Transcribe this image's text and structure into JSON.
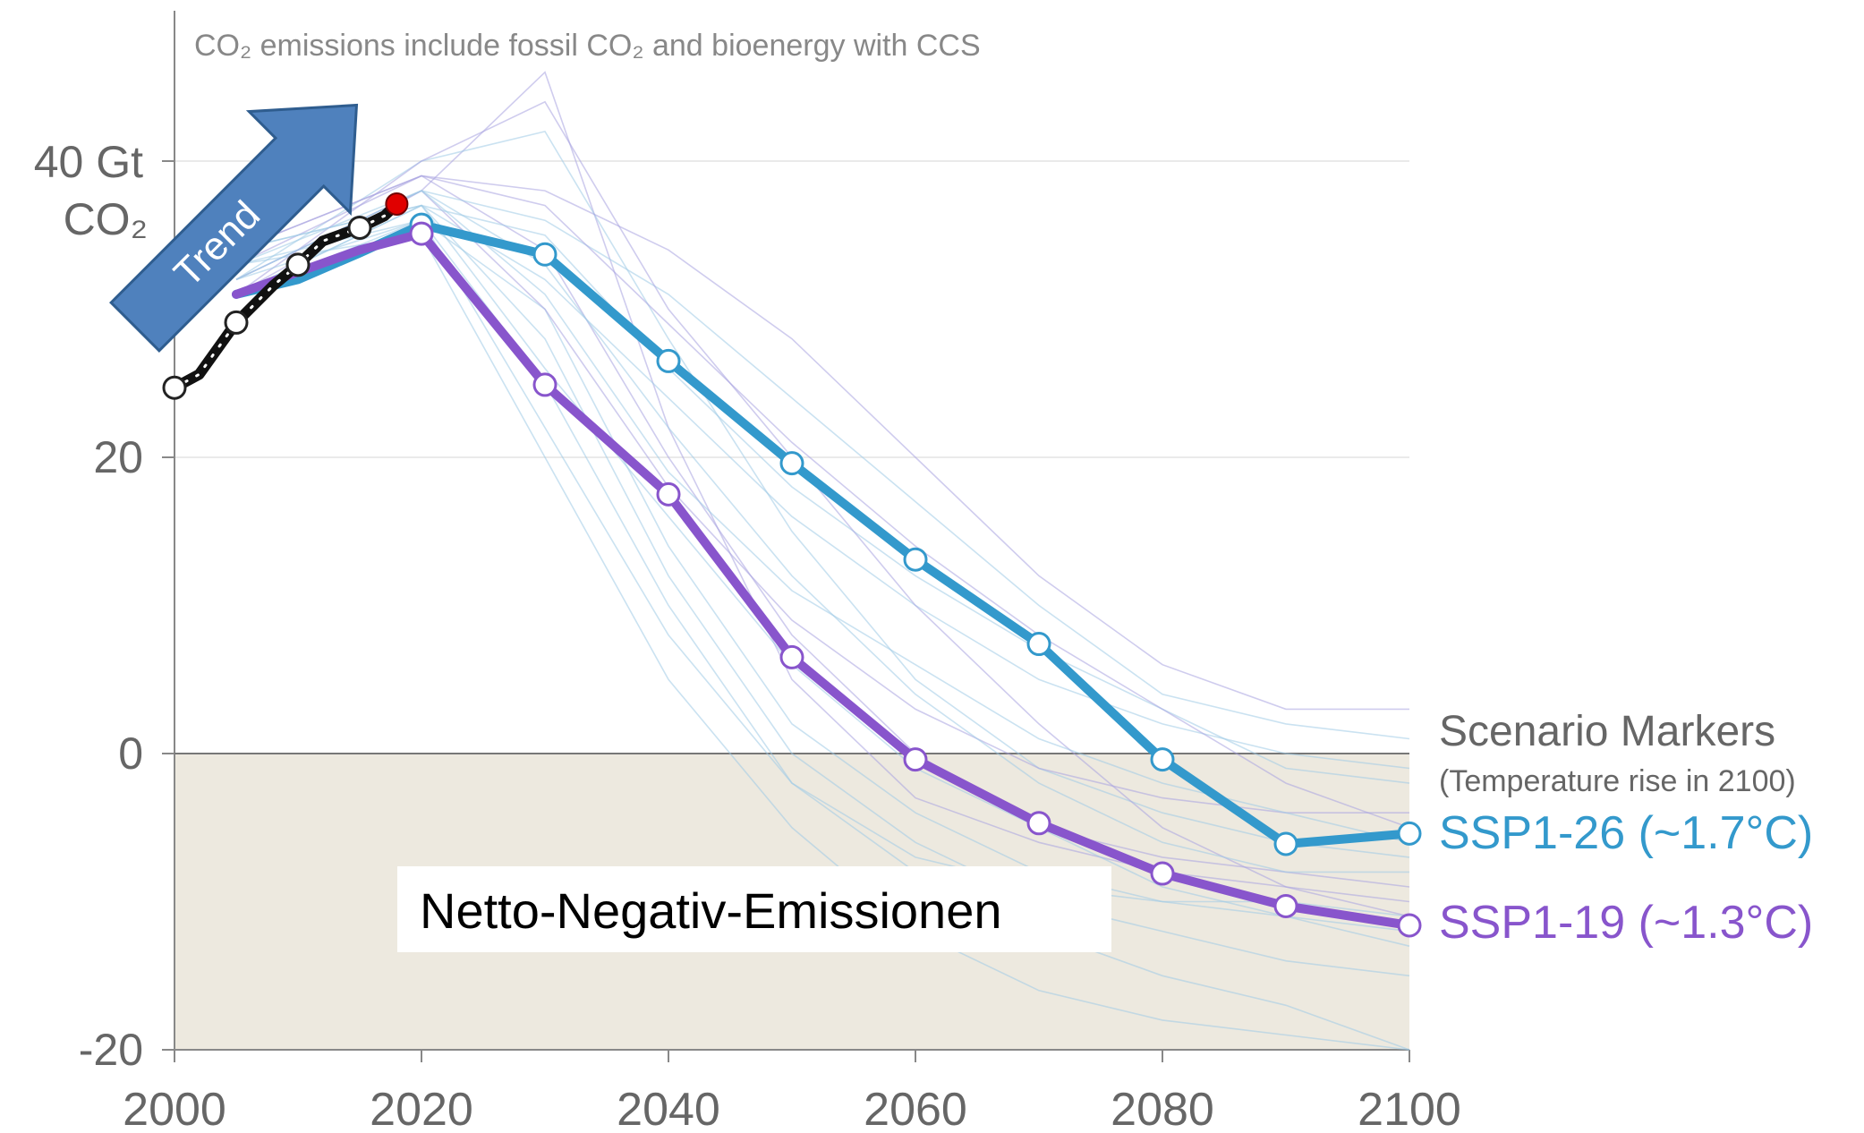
{
  "chart_data": {
    "type": "line",
    "note": "CO₂ emissions include fossil CO₂ and bioenergy with CCS",
    "y_unit_label": [
      "40 Gt",
      "CO₂"
    ],
    "x_ticks": [
      "2000",
      "2020",
      "2040",
      "2060",
      "2080",
      "2100"
    ],
    "y_ticks": [
      "20",
      "0",
      "-20"
    ],
    "xlim": [
      2000,
      2100
    ],
    "ylim": [
      -20,
      40
    ],
    "grid": true,
    "negative_region_label": "Netto-Negativ-Emissionen",
    "trend_label": "Trend",
    "legend_title": "Scenario Markers",
    "legend_subtitle": "(Temperature rise in 2100)",
    "series": [
      {
        "name": "SSP1-26 (~1.7°C)",
        "color": "#3399cc",
        "x": [
          2005,
          2010,
          2015,
          2020,
          2030,
          2040,
          2050,
          2060,
          2070,
          2080,
          2090,
          2100
        ],
        "y": [
          31.0,
          32.0,
          33.8,
          35.7,
          33.7,
          26.5,
          19.6,
          13.1,
          7.4,
          -0.4,
          -6.1,
          -5.4
        ]
      },
      {
        "name": "SSP1-19 (~1.3°C)",
        "color": "#8855cc",
        "x": [
          2005,
          2010,
          2015,
          2020,
          2030,
          2040,
          2050,
          2060,
          2070,
          2080,
          2090,
          2100
        ],
        "y": [
          31.0,
          32.5,
          34.0,
          35.1,
          24.9,
          17.5,
          6.5,
          -0.4,
          -4.7,
          -8.1,
          -10.3,
          -11.6
        ]
      }
    ],
    "historical": {
      "x": [
        2000,
        2002,
        2005,
        2008,
        2010,
        2012,
        2015,
        2017,
        2018
      ],
      "y": [
        24.7,
        25.6,
        29.1,
        31.6,
        33.0,
        34.6,
        35.5,
        36.3,
        37.1
      ]
    },
    "background_scenarios": {
      "x": [
        2020,
        2030,
        2040,
        2050,
        2060,
        2070,
        2080,
        2090,
        2100
      ],
      "paths": [
        [
          38,
          46,
          22,
          5,
          -3,
          -6,
          -8,
          -9,
          -10
        ],
        [
          40,
          42,
          28,
          15,
          5,
          -1,
          -4,
          -6,
          -7
        ],
        [
          36,
          30,
          14,
          2,
          -4,
          -8,
          -10,
          -11,
          -12
        ],
        [
          39,
          34,
          20,
          8,
          0,
          -5,
          -7,
          -8,
          -9
        ],
        [
          37,
          28,
          12,
          0,
          -6,
          -10,
          -12,
          -14,
          -15
        ],
        [
          38,
          36,
          31,
          24,
          17,
          10,
          4,
          2,
          1
        ],
        [
          39,
          38,
          34,
          28,
          20,
          12,
          6,
          3,
          3
        ],
        [
          37,
          32,
          24,
          16,
          10,
          5,
          2,
          0,
          -1
        ],
        [
          36,
          25,
          10,
          -2,
          -8,
          -12,
          -15,
          -17,
          -20
        ],
        [
          38,
          30,
          18,
          9,
          3,
          -1,
          -3,
          -4,
          -4
        ],
        [
          35,
          20,
          5,
          -5,
          -12,
          -16,
          -18,
          -19,
          -20
        ],
        [
          37,
          35,
          26,
          18,
          12,
          7,
          3,
          -1,
          -2
        ],
        [
          40,
          44,
          30,
          20,
          10,
          2,
          -5,
          -9,
          -11
        ],
        [
          36,
          22,
          8,
          -2,
          -7,
          -9,
          -10,
          -10,
          -11
        ],
        [
          38,
          33,
          22,
          12,
          4,
          -2,
          -6,
          -8,
          -8
        ],
        [
          39,
          37,
          29,
          21,
          14,
          8,
          3,
          -2,
          -5
        ],
        [
          37,
          26,
          16,
          6,
          -1,
          -5,
          -9,
          -11,
          -13
        ],
        [
          38,
          31,
          19,
          11,
          6,
          1,
          -2,
          -4,
          -6
        ]
      ]
    }
  }
}
